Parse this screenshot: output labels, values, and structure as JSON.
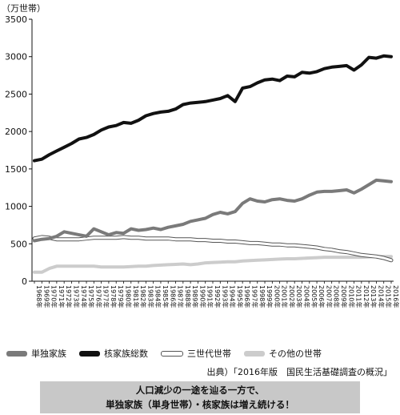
{
  "unit_label": "（万世帯）",
  "source_text": "出典）「2016年版　国民生活基礎調査の概況」",
  "banner": {
    "line1": "人口減少の一途を辿る一方で、",
    "line2": "単独家族（単身世帯）・核家族は増え続ける！"
  },
  "chart_data": {
    "type": "line",
    "ylim": [
      0,
      3500
    ],
    "yticks": [
      0,
      500,
      1000,
      1500,
      2000,
      2500,
      3000,
      3500
    ],
    "x": [
      "1968年",
      "1969年",
      "1970年",
      "1971年",
      "1972年",
      "1973年",
      "1974年",
      "1975年",
      "1976年",
      "1977年",
      "1978年",
      "1979年",
      "1980年",
      "1981年",
      "1982年",
      "1983年",
      "1984年",
      "1985年",
      "1986年",
      "1987年",
      "1988年",
      "1989年",
      "1990年",
      "1991年",
      "1992年",
      "1993年",
      "1994年",
      "1995年",
      "1996年",
      "1997年",
      "1998年",
      "1999年",
      "2000年",
      "2001年",
      "2002年",
      "2003年",
      "2004年",
      "2005年",
      "2006年",
      "2007年",
      "2008年",
      "2009年",
      "2010年",
      "2011年",
      "2012年",
      "2013年",
      "2014年",
      "2015年",
      "2016年"
    ],
    "grid": false,
    "legend_position": "bottom",
    "series": [
      {
        "name": "単独家族",
        "color": "#7a7a7a",
        "style": "solid",
        "values": [
          540,
          560,
          570,
          600,
          660,
          640,
          620,
          600,
          700,
          660,
          620,
          650,
          640,
          700,
          680,
          690,
          710,
          690,
          720,
          740,
          760,
          800,
          820,
          840,
          890,
          920,
          900,
          930,
          1040,
          1100,
          1070,
          1060,
          1090,
          1100,
          1080,
          1070,
          1100,
          1150,
          1190,
          1200,
          1200,
          1210,
          1220,
          1180,
          1230,
          1290,
          1350,
          1340,
          1330
        ]
      },
      {
        "name": "核家族総数",
        "color": "#111111",
        "style": "solid",
        "values": [
          1610,
          1630,
          1690,
          1740,
          1790,
          1840,
          1900,
          1920,
          1960,
          2020,
          2060,
          2080,
          2120,
          2110,
          2150,
          2210,
          2240,
          2260,
          2270,
          2300,
          2360,
          2380,
          2390,
          2400,
          2420,
          2440,
          2480,
          2400,
          2580,
          2600,
          2650,
          2690,
          2700,
          2680,
          2740,
          2730,
          2790,
          2780,
          2800,
          2840,
          2860,
          2870,
          2880,
          2820,
          2890,
          2990,
          2980,
          3010,
          3000
        ]
      },
      {
        "name": "三世代世帯",
        "color": "#555555",
        "style": "outline",
        "values": [
          570,
          590,
          580,
          560,
          560,
          560,
          560,
          570,
          580,
          580,
          580,
          580,
          590,
          580,
          580,
          570,
          570,
          570,
          570,
          560,
          560,
          560,
          550,
          550,
          540,
          540,
          530,
          530,
          520,
          510,
          510,
          500,
          490,
          490,
          480,
          480,
          470,
          460,
          450,
          430,
          420,
          400,
          390,
          370,
          350,
          340,
          330,
          310,
          280
        ]
      },
      {
        "name": "その他の世帯",
        "color": "#cccccc",
        "style": "solid",
        "values": [
          120,
          120,
          170,
          200,
          200,
          200,
          200,
          200,
          200,
          190,
          190,
          190,
          190,
          195,
          200,
          200,
          210,
          215,
          220,
          225,
          230,
          220,
          230,
          245,
          250,
          255,
          260,
          260,
          270,
          275,
          280,
          285,
          290,
          295,
          300,
          300,
          305,
          310,
          315,
          320,
          320,
          320,
          320,
          320,
          320,
          325,
          330,
          330,
          330
        ]
      }
    ]
  }
}
